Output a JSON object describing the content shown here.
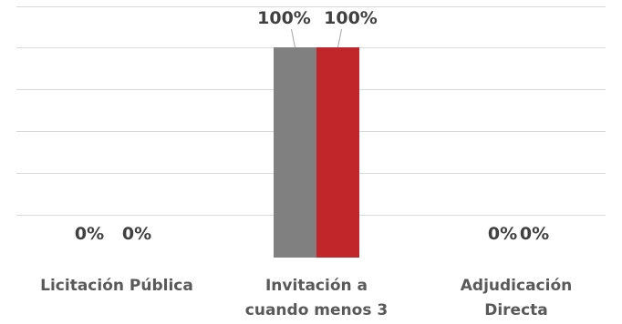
{
  "chart_data": {
    "type": "bar",
    "categories": [
      [
        "Licitación Pública"
      ],
      [
        "Invitación a",
        "cuando menos 3"
      ],
      [
        "Adjudicación",
        "Directa"
      ]
    ],
    "series": [
      {
        "color": "#808080",
        "values": [
          0,
          1,
          0
        ],
        "labels": [
          "0%",
          "100%",
          "0%"
        ]
      },
      {
        "color": "#c0262a",
        "values": [
          0,
          1,
          0
        ],
        "labels": [
          "0%",
          "100%",
          "0%"
        ]
      }
    ],
    "ylim": [
      0,
      1
    ],
    "grid": true,
    "legend": "none",
    "gridline_color": "#d9d9d9"
  }
}
